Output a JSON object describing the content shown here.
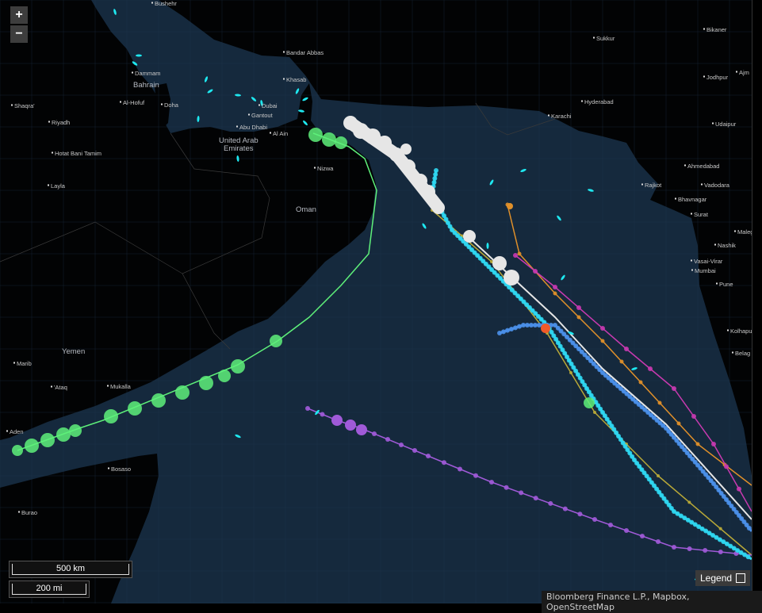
{
  "controls": {
    "zoom_in": "+",
    "zoom_out": "−"
  },
  "scale": {
    "metric": "500 km",
    "imperial": "200 mi"
  },
  "legend": {
    "label": "Legend"
  },
  "attribution": "Bloomberg Finance L.P., Mapbox, OpenStreetMap",
  "countries": [
    "Bahrain",
    "United Arab",
    "Emirates",
    "Oman",
    "Yemen"
  ],
  "cities": [
    "Bushehr",
    "Dammam",
    "Al-Hofuf",
    "Doha",
    "Shaqra'",
    "Riyadh",
    "Hotat Bani Tamim",
    "Layla",
    "Bandar Abbas",
    "Khasab",
    "Dubai",
    "Gantout",
    "Abu Dhabi",
    "Al Ain",
    "Nizwa",
    "Sukkur",
    "Bikaner",
    "Jodhpur",
    "Ajm",
    "Hyderabad",
    "Karachi",
    "Udaipur",
    "Ahmedabad",
    "Rajkot",
    "Vadodara",
    "Bhavnagar",
    "Surat",
    "Maleg",
    "Nashik",
    "Vasai-Virar",
    "Mumbai",
    "Pune",
    "Kolhapu",
    "Belag",
    "Marib",
    "'Ataq",
    "Mukalla",
    "Aden",
    "Bosaso",
    "Burao"
  ],
  "colors": {
    "sea": "#15293d",
    "land": "#000000",
    "green": "#5ef07a",
    "white": "#e6e6e6",
    "cyan": "#2fd6f0",
    "blue": "#4a8fe8",
    "magenta": "#c83ab0",
    "orange": "#e0902a",
    "purple": "#a05ad8",
    "olive": "#b8a838",
    "red": "#f05a28",
    "vessel": "#1ee8f0"
  }
}
